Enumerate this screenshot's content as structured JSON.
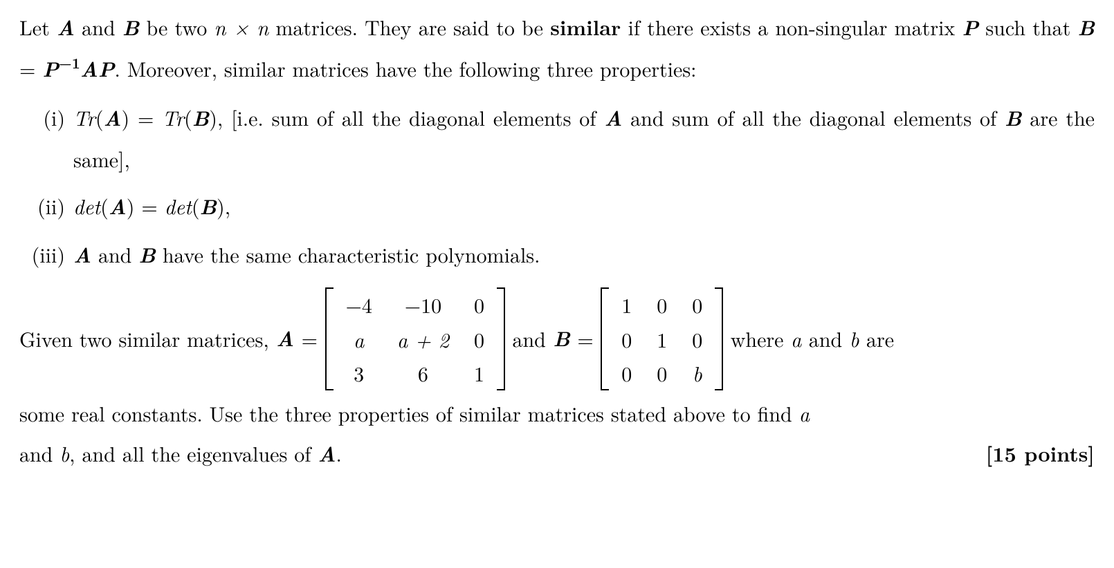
{
  "intro": {
    "t1": "Let ",
    "A": "A",
    "t2": " and ",
    "B": "B",
    "t3": " be two ",
    "nxn": "n × n",
    "t4": " matrices. They are said to be ",
    "similar": "similar",
    "t5": " if there exists a non-singular matrix ",
    "P": "P",
    "t6": " such that ",
    "eq_lhs_B": "B",
    "eq_eq": " = ",
    "eq_P": "P",
    "eq_sup": "−1",
    "eq_A": "A",
    "eq_P2": "P",
    "t7": ". Moreover, similar matrices have the following three properties:"
  },
  "items": {
    "i": {
      "marker": "(i)",
      "pre": "Tr",
      "lpar": "(",
      "A": "A",
      "rpar": ")",
      "eq": " = ",
      "pre2": "Tr",
      "B": "B",
      "post": ", [i.e. sum of all the diagonal elements of ",
      "A2": "A",
      "post2": " and sum of all the diagonal elements of ",
      "B2": "B",
      "post3": " are the same],"
    },
    "ii": {
      "marker": "(ii)",
      "pre": "det",
      "A": "A",
      "eq": " = ",
      "pre2": "det",
      "B": "B",
      "post": ","
    },
    "iii": {
      "marker": "(iii)",
      "A": "A",
      "mid": " and ",
      "B": "B",
      "post": " have the same characteristic polynomials."
    }
  },
  "given": {
    "lead": "Given two similar matrices, ",
    "A": "A",
    "eq": " = ",
    "and": " and ",
    "B": "B",
    "eq2": " = ",
    "tail": " where ",
    "a": "a",
    "tail2": " and ",
    "b": "b",
    "tail3": " are"
  },
  "matrixA": {
    "rows": [
      [
        "−4",
        "−10",
        "0"
      ],
      [
        "a",
        "a + 2",
        "0"
      ],
      [
        "3",
        "6",
        "1"
      ]
    ],
    "italicCells": [
      [
        false,
        false,
        false
      ],
      [
        true,
        true,
        false
      ],
      [
        false,
        false,
        false
      ]
    ]
  },
  "matrixB": {
    "rows": [
      [
        "1",
        "0",
        "0"
      ],
      [
        "0",
        "1",
        "0"
      ],
      [
        "0",
        "0",
        "b"
      ]
    ],
    "italicCells": [
      [
        false,
        false,
        false
      ],
      [
        false,
        false,
        false
      ],
      [
        false,
        false,
        true
      ]
    ]
  },
  "closing": {
    "l1a": "some real constants. Use the three properties of similar matrices stated above to find ",
    "a": "a",
    "l2a": "and ",
    "b": "b",
    "l2b": ", and all the eigenvalues of ",
    "A": "A",
    "l2c": ".",
    "points": "[15 points]"
  }
}
